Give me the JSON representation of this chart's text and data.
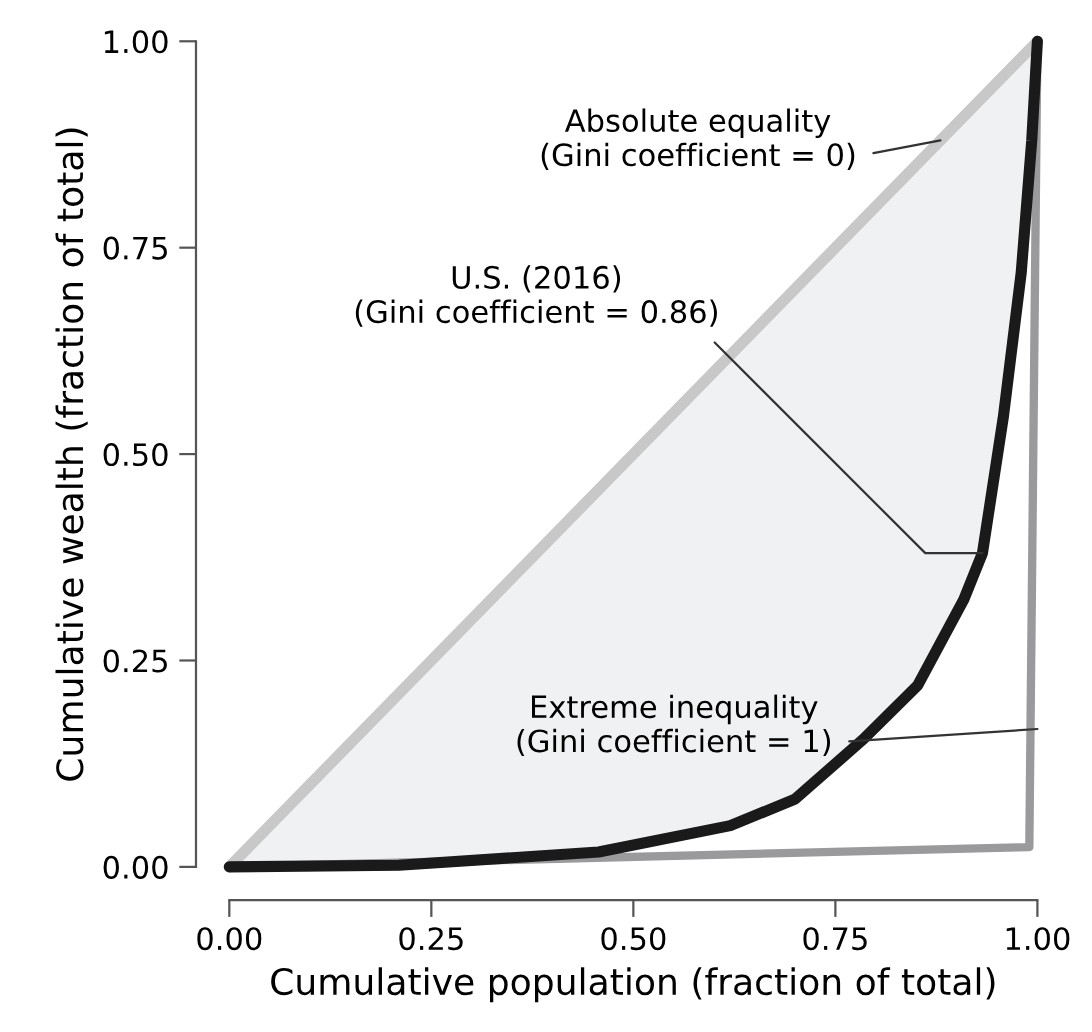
{
  "chart_data": {
    "type": "line",
    "xlabel": "Cumulative population (fraction of total)",
    "ylabel": "Cumulative wealth (fraction of total)",
    "xlim": [
      0,
      1
    ],
    "ylim": [
      0,
      1
    ],
    "xticks": [
      {
        "value": 0,
        "label": "0.00"
      },
      {
        "value": 0.25,
        "label": "0.25"
      },
      {
        "value": 0.5,
        "label": "0.50"
      },
      {
        "value": 0.75,
        "label": "0.75"
      },
      {
        "value": 1,
        "label": "1.00"
      }
    ],
    "yticks": [
      {
        "value": 0,
        "label": "0.00"
      },
      {
        "value": 0.25,
        "label": "0.25"
      },
      {
        "value": 0.5,
        "label": "0.50"
      },
      {
        "value": 0.75,
        "label": "0.75"
      },
      {
        "value": 1,
        "label": "1.00"
      }
    ],
    "grid": false,
    "legend": false,
    "series": [
      {
        "color": "#c8c8c8",
        "x": [
          0,
          1
        ],
        "values": [
          0,
          1
        ]
      },
      {
        "color": "#9a9a9c",
        "x": [
          0,
          0.99,
          1
        ],
        "values": [
          0,
          0.024,
          1
        ]
      },
      {
        "color": "#1a1a1a",
        "x": [
          0,
          0.21,
          0.457,
          0.62,
          0.7,
          0.785,
          0.852,
          0.909,
          0.932,
          0.958,
          0.98,
          0.993,
          1
        ],
        "values": [
          0,
          0.002,
          0.018,
          0.05,
          0.082,
          0.155,
          0.22,
          0.324,
          0.38,
          0.546,
          0.72,
          0.88,
          1
        ],
        "lower": [
          0,
          0.002,
          0.018,
          0.05,
          0.082,
          0.155,
          0.22,
          0.324,
          0.38,
          0.546,
          0.72,
          0.88,
          1
        ],
        "upper": [
          0,
          0.21,
          0.457,
          0.62,
          0.7,
          0.785,
          0.852,
          0.909,
          0.932,
          0.958,
          0.98,
          0.993,
          1
        ]
      }
    ],
    "annotations": [
      {
        "text": "Absolute equality\n(Gini coefficient = 0)",
        "x": 0.88,
        "y": 0.88
      },
      {
        "text": "U.S. (2016)\n(Gini coefficient = 0.86)",
        "x": 0.932,
        "y": 0.38
      },
      {
        "text": "Extreme inequality\n(Gini coefficient = 1)",
        "x": 1.0,
        "y": 0.167
      }
    ]
  }
}
